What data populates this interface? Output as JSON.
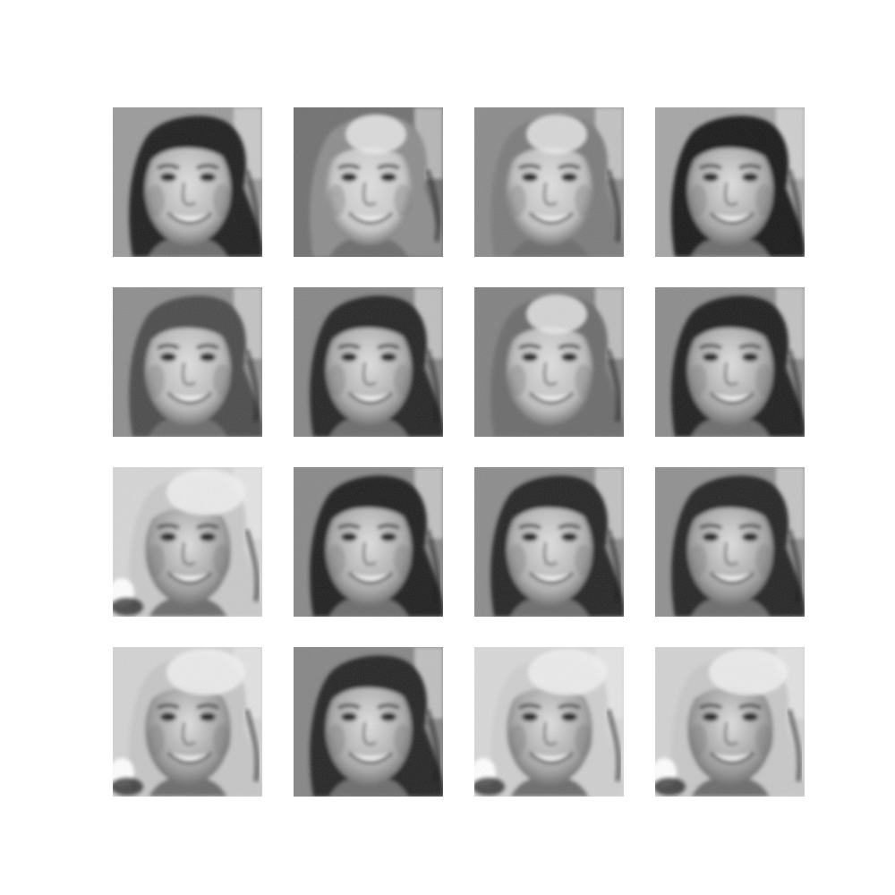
{
  "figure": {
    "rows": 4,
    "cols": 4,
    "colormap": "grayscale",
    "background": "#ffffff",
    "samples": [
      {
        "row": 1,
        "col": 1,
        "hair": "dark",
        "background": "light-gray",
        "artifact": "none",
        "hair_tone": "#1f1f1f",
        "face_tone": "#b3b3b3",
        "bg_tone": "#9a9a9a"
      },
      {
        "row": 1,
        "col": 2,
        "hair": "washed-out",
        "background": "mid-gray",
        "artifact": "light-hair-patch",
        "hair_tone": "#8c8c8c",
        "face_tone": "#c8c8c8",
        "bg_tone": "#6f6f6f"
      },
      {
        "row": 1,
        "col": 3,
        "hair": "washed-out",
        "background": "mid-gray",
        "artifact": "light-hair-patch",
        "hair_tone": "#7a7a7a",
        "face_tone": "#c0c0c0",
        "bg_tone": "#8a8a8a"
      },
      {
        "row": 1,
        "col": 4,
        "hair": "dark",
        "background": "light-gray",
        "artifact": "none",
        "hair_tone": "#141414",
        "face_tone": "#a8a8a8",
        "bg_tone": "#a5a5a5"
      },
      {
        "row": 2,
        "col": 1,
        "hair": "mid",
        "background": "mid-gray",
        "artifact": "none",
        "hair_tone": "#4a4a4a",
        "face_tone": "#b7b7b7",
        "bg_tone": "#8d8d8d"
      },
      {
        "row": 2,
        "col": 2,
        "hair": "dark",
        "background": "mid-gray",
        "artifact": "none",
        "hair_tone": "#222222",
        "face_tone": "#ababab",
        "bg_tone": "#858585"
      },
      {
        "row": 2,
        "col": 3,
        "hair": "washed-out",
        "background": "mid-gray",
        "artifact": "light-hair-patch",
        "hair_tone": "#6b6b6b",
        "face_tone": "#bdbdbd",
        "bg_tone": "#808080"
      },
      {
        "row": 2,
        "col": 4,
        "hair": "dark",
        "background": "mid-gray",
        "artifact": "none",
        "hair_tone": "#1b1b1b",
        "face_tone": "#a6a6a6",
        "bg_tone": "#8b8b8b"
      },
      {
        "row": 3,
        "col": 1,
        "hair": "light",
        "background": "light",
        "artifact": "bright-blob-bottom-left",
        "hair_tone": "#c9c9c9",
        "face_tone": "#9f9f9f",
        "bg_tone": "#d6d6d6"
      },
      {
        "row": 3,
        "col": 2,
        "hair": "dark",
        "background": "mid-gray",
        "artifact": "none",
        "hair_tone": "#1e1e1e",
        "face_tone": "#a9a9a9",
        "bg_tone": "#888888"
      },
      {
        "row": 3,
        "col": 3,
        "hair": "dark",
        "background": "mid-gray",
        "artifact": "none",
        "hair_tone": "#222222",
        "face_tone": "#b0b0b0",
        "bg_tone": "#8b8b8b"
      },
      {
        "row": 3,
        "col": 4,
        "hair": "dark",
        "background": "mid-gray",
        "artifact": "none",
        "hair_tone": "#202020",
        "face_tone": "#a3a3a3",
        "bg_tone": "#8f8f8f"
      },
      {
        "row": 4,
        "col": 1,
        "hair": "light",
        "background": "light",
        "artifact": "bright-blob-bottom-left",
        "hair_tone": "#c6c6c6",
        "face_tone": "#9d9d9d",
        "bg_tone": "#d3d3d3"
      },
      {
        "row": 4,
        "col": 2,
        "hair": "dark",
        "background": "mid-gray",
        "artifact": "none",
        "hair_tone": "#242424",
        "face_tone": "#a8a8a8",
        "bg_tone": "#858585"
      },
      {
        "row": 4,
        "col": 3,
        "hair": "light",
        "background": "light",
        "artifact": "bright-blob-bottom-left",
        "hair_tone": "#cfcfcf",
        "face_tone": "#a4a4a4",
        "bg_tone": "#d8d8d8"
      },
      {
        "row": 4,
        "col": 4,
        "hair": "light",
        "background": "light",
        "artifact": "bright-blob-bottom-left",
        "hair_tone": "#c8c8c8",
        "face_tone": "#9b9b9b",
        "bg_tone": "#d2d2d2"
      }
    ]
  }
}
